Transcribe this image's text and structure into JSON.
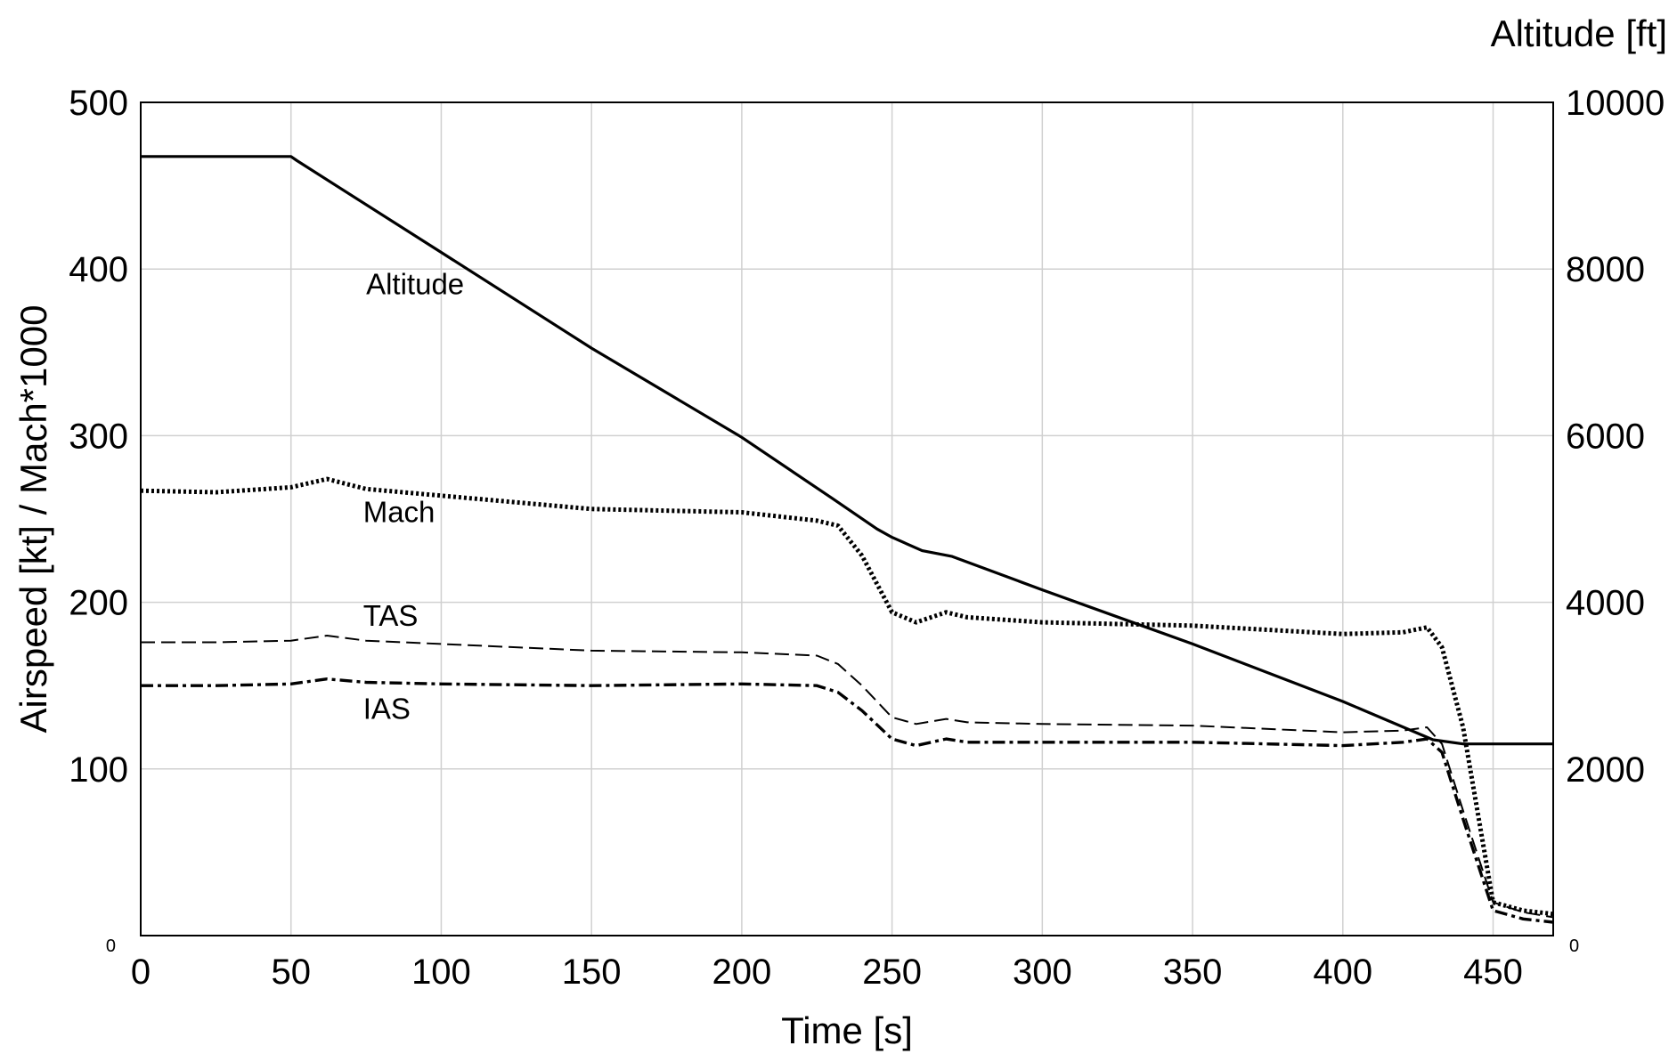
{
  "chart_data": {
    "type": "line",
    "title": "",
    "xlabel": "Time [s]",
    "ylabel": "Airspeed [kt] / Mach*1000",
    "y2label": "Altitude [ft]",
    "xlim": [
      0,
      470
    ],
    "ylim": [
      0,
      500
    ],
    "y2lim": [
      0,
      10000
    ],
    "grid": true,
    "x_ticks": [
      "0",
      "50",
      "100",
      "150",
      "200",
      "250",
      "300",
      "350",
      "400",
      "450"
    ],
    "x_tick_values": [
      0,
      50,
      100,
      150,
      200,
      250,
      300,
      350,
      400,
      450
    ],
    "y_ticks": [
      "100",
      "200",
      "300",
      "400",
      "500"
    ],
    "y_tick_values": [
      100,
      200,
      300,
      400,
      500
    ],
    "y_zero_label": "0",
    "y2_ticks": [
      "2000",
      "4000",
      "6000",
      "8000",
      "10000"
    ],
    "y2_tick_values": [
      2000,
      4000,
      6000,
      8000,
      10000
    ],
    "y2_zero_label": "0",
    "series": [
      {
        "name": "Altitude",
        "axis": "right",
        "style": "solid",
        "x": [
          0,
          50,
          52,
          100,
          150,
          200,
          230,
          245,
          250,
          260,
          270,
          300,
          350,
          400,
          430,
          440,
          470
        ],
        "y": [
          9350,
          9350,
          9300,
          8200,
          7050,
          5980,
          5250,
          4880,
          4780,
          4620,
          4550,
          4150,
          3500,
          2810,
          2350,
          2300,
          2300
        ]
      },
      {
        "name": "Mach",
        "axis": "left",
        "style": "dotted",
        "x": [
          0,
          25,
          50,
          62,
          75,
          100,
          150,
          200,
          225,
          232,
          240,
          250,
          258,
          268,
          275,
          300,
          350,
          400,
          420,
          428,
          433,
          440,
          450,
          460,
          470
        ],
        "y": [
          267,
          266,
          269,
          274,
          268,
          264,
          256,
          254,
          249,
          246,
          228,
          194,
          188,
          194,
          191,
          188,
          186,
          181,
          182,
          185,
          173,
          125,
          20,
          15,
          13
        ]
      },
      {
        "name": "TAS",
        "axis": "left",
        "style": "dashed",
        "x": [
          0,
          25,
          50,
          62,
          75,
          100,
          150,
          200,
          225,
          232,
          240,
          250,
          258,
          268,
          275,
          300,
          350,
          400,
          420,
          428,
          433,
          440,
          450,
          460,
          470
        ],
        "y": [
          176,
          176,
          177,
          180,
          177,
          175,
          171,
          170,
          168,
          163,
          150,
          131,
          127,
          130,
          128,
          127,
          126,
          122,
          123,
          125,
          115,
          75,
          20,
          14,
          11
        ]
      },
      {
        "name": "IAS",
        "axis": "left",
        "style": "dashdot",
        "x": [
          0,
          25,
          50,
          62,
          75,
          100,
          150,
          200,
          225,
          232,
          240,
          250,
          258,
          268,
          275,
          300,
          350,
          400,
          420,
          428,
          433,
          440,
          450,
          460,
          470
        ],
        "y": [
          150,
          150,
          151,
          154,
          152,
          151,
          150,
          151,
          150,
          146,
          135,
          118,
          114,
          118,
          116,
          116,
          116,
          114,
          116,
          118,
          110,
          70,
          15,
          10,
          8
        ]
      }
    ],
    "annotations": [
      {
        "text": "Altitude",
        "x": 75,
        "y": 385
      },
      {
        "text": "Mach",
        "x": 74,
        "y": 248
      },
      {
        "text": "TAS",
        "x": 74,
        "y": 186
      },
      {
        "text": "IAS",
        "x": 74,
        "y": 130
      }
    ]
  }
}
